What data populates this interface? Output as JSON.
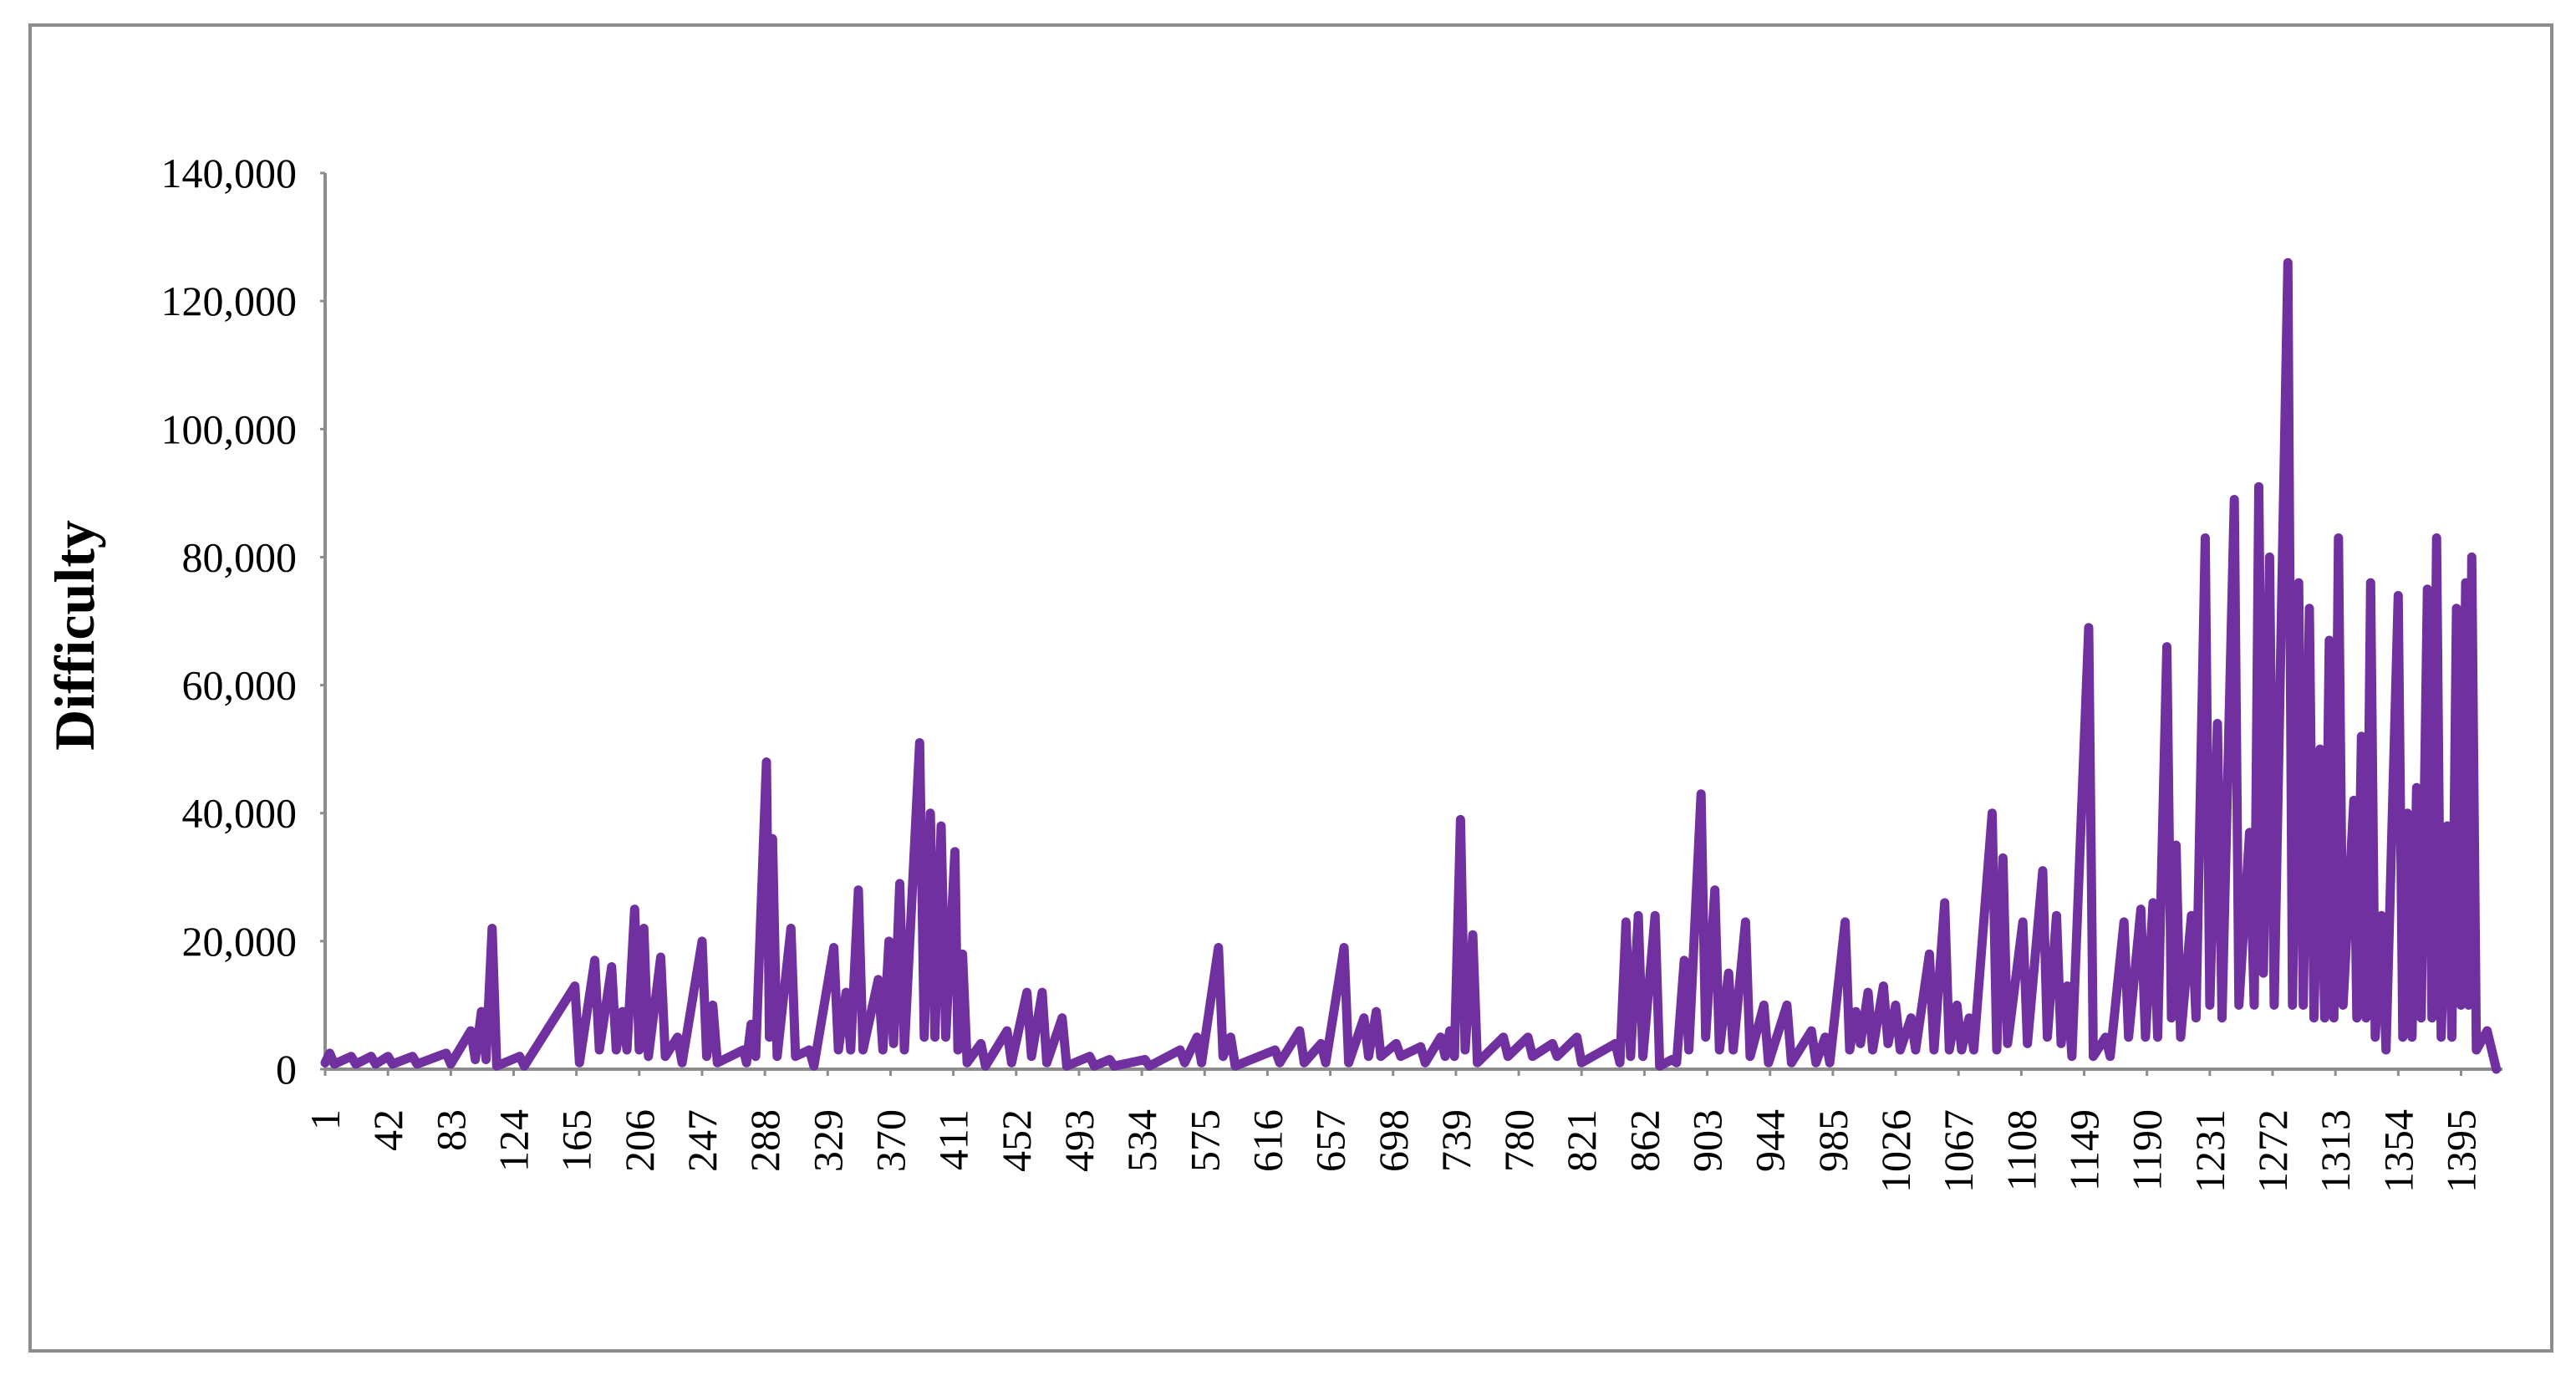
{
  "chart_data": {
    "type": "line",
    "y_label": "Difficulty",
    "color": "#7030a0",
    "xlim": [
      1,
      1422
    ],
    "ylim": [
      0,
      140000
    ],
    "xticks": [
      1,
      42,
      83,
      124,
      165,
      206,
      247,
      288,
      329,
      370,
      411,
      452,
      493,
      534,
      575,
      616,
      657,
      698,
      739,
      780,
      821,
      862,
      903,
      944,
      985,
      1026,
      1067,
      1108,
      1149,
      1190,
      1231,
      1272,
      1313,
      1354,
      1395
    ],
    "yticks": [
      {
        "value": 0,
        "label": "0"
      },
      {
        "value": 20000,
        "label": "20,000"
      },
      {
        "value": 40000,
        "label": "40,000"
      },
      {
        "value": 60000,
        "label": "60,000"
      },
      {
        "value": 80000,
        "label": "80,000"
      },
      {
        "value": 100000,
        "label": "100,000"
      },
      {
        "value": 120000,
        "label": "120,000"
      },
      {
        "value": 140000,
        "label": "140,000"
      }
    ],
    "x": [
      1,
      4,
      7,
      18,
      21,
      31,
      34,
      42,
      45,
      58,
      61,
      80,
      83,
      96,
      99,
      103,
      106,
      110,
      113,
      128,
      131,
      164,
      167,
      177,
      180,
      188,
      191,
      195,
      198,
      203,
      206,
      209,
      212,
      220,
      223,
      231,
      234,
      247,
      250,
      254,
      257,
      274,
      276,
      279,
      282,
      289,
      291,
      293,
      296,
      305,
      308,
      317,
      320,
      333,
      336,
      341,
      344,
      349,
      352,
      362,
      365,
      369,
      372,
      376,
      379,
      389,
      392,
      396,
      399,
      403,
      406,
      412,
      414,
      417,
      420,
      429,
      432,
      446,
      449,
      459,
      462,
      469,
      472,
      482,
      485,
      500,
      503,
      513,
      516,
      536,
      539,
      559,
      562,
      570,
      573,
      584,
      587,
      592,
      595,
      621,
      624,
      637,
      640,
      651,
      654,
      666,
      669,
      679,
      682,
      687,
      690,
      700,
      703,
      716,
      719,
      729,
      732,
      735,
      738,
      742,
      745,
      750,
      753,
      770,
      773,
      786,
      789,
      802,
      805,
      818,
      821,
      843,
      846,
      850,
      853,
      858,
      861,
      869,
      872,
      880,
      883,
      888,
      891,
      899,
      902,
      908,
      911,
      917,
      920,
      928,
      931,
      940,
      943,
      955,
      958,
      971,
      974,
      980,
      983,
      993,
      996,
      1000,
      1003,
      1008,
      1011,
      1018,
      1021,
      1026,
      1029,
      1036,
      1039,
      1048,
      1051,
      1058,
      1061,
      1066,
      1069,
      1074,
      1077,
      1089,
      1092,
      1096,
      1099,
      1109,
      1112,
      1122,
      1125,
      1131,
      1134,
      1138,
      1141,
      1152,
      1155,
      1163,
      1166,
      1175,
      1178,
      1186,
      1189,
      1194,
      1197,
      1203,
      1206,
      1209,
      1212,
      1219,
      1222,
      1228,
      1231,
      1236,
      1239,
      1247,
      1250,
      1257,
      1260,
      1263,
      1266,
      1270,
      1273,
      1282,
      1285,
      1289,
      1292,
      1296,
      1299,
      1303,
      1306,
      1309,
      1312,
      1315,
      1318,
      1325,
      1327,
      1330,
      1333,
      1336,
      1339,
      1343,
      1346,
      1354,
      1357,
      1360,
      1363,
      1366,
      1369,
      1373,
      1376,
      1379,
      1382,
      1386,
      1389,
      1392,
      1395,
      1398,
      1400,
      1402,
      1405,
      1412,
      1418
    ],
    "values": [
      1000,
      2500,
      800,
      2000,
      800,
      2000,
      800,
      2000,
      800,
      2000,
      800,
      2500,
      800,
      6000,
      1500,
      9000,
      1500,
      22000,
      500,
      2000,
      500,
      13000,
      1000,
      17000,
      3000,
      16000,
      3000,
      9000,
      3000,
      25000,
      3000,
      22000,
      2000,
      17500,
      2000,
      5000,
      1000,
      20000,
      2000,
      10000,
      1000,
      3000,
      1000,
      7000,
      2000,
      48000,
      5000,
      36000,
      2000,
      22000,
      2000,
      3000,
      500,
      19000,
      3000,
      12000,
      3000,
      28000,
      3000,
      14000,
      3000,
      20000,
      4000,
      29000,
      3000,
      51000,
      5000,
      40000,
      5000,
      38000,
      5000,
      34000,
      3000,
      18000,
      1000,
      4000,
      500,
      6000,
      1000,
      12000,
      2000,
      12000,
      1000,
      8000,
      500,
      2000,
      500,
      1500,
      500,
      1500,
      500,
      3000,
      1000,
      5000,
      1000,
      19000,
      2000,
      5000,
      500,
      3000,
      1000,
      6000,
      1000,
      4000,
      1000,
      19000,
      1000,
      8000,
      2000,
      9000,
      2000,
      4000,
      2000,
      3500,
      1000,
      5000,
      2000,
      6000,
      2000,
      39000,
      3000,
      21000,
      1000,
      5000,
      2000,
      5000,
      2000,
      4000,
      2000,
      5000,
      1000,
      4000,
      1000,
      23000,
      2000,
      24000,
      2000,
      24000,
      500,
      1500,
      1000,
      17000,
      3000,
      43000,
      5000,
      28000,
      3000,
      15000,
      3000,
      23000,
      2000,
      10000,
      1000,
      10000,
      1000,
      6000,
      1000,
      5000,
      1000,
      23000,
      3000,
      9000,
      4000,
      12000,
      3000,
      13000,
      4000,
      10000,
      3000,
      8000,
      3000,
      18000,
      3000,
      26000,
      3000,
      10000,
      3000,
      8000,
      3000,
      40000,
      3000,
      33000,
      4000,
      23000,
      4000,
      31000,
      5000,
      24000,
      4000,
      13000,
      2000,
      69000,
      2000,
      5000,
      2000,
      23000,
      5000,
      25000,
      5000,
      26000,
      5000,
      66000,
      8000,
      35000,
      5000,
      24000,
      8000,
      83000,
      10000,
      54000,
      8000,
      89000,
      10000,
      37000,
      10000,
      91000,
      15000,
      80000,
      10000,
      126000,
      10000,
      76000,
      10000,
      72000,
      8000,
      50000,
      8000,
      67000,
      8000,
      83000,
      10000,
      42000,
      8000,
      52000,
      8000,
      76000,
      5000,
      24000,
      3000,
      74000,
      5000,
      40000,
      5000,
      44000,
      8000,
      75000,
      8000,
      83000,
      5000,
      38000,
      5000,
      72000,
      10000,
      76000,
      10000,
      80000,
      3000,
      6000,
      0
    ],
    "grid": false
  }
}
